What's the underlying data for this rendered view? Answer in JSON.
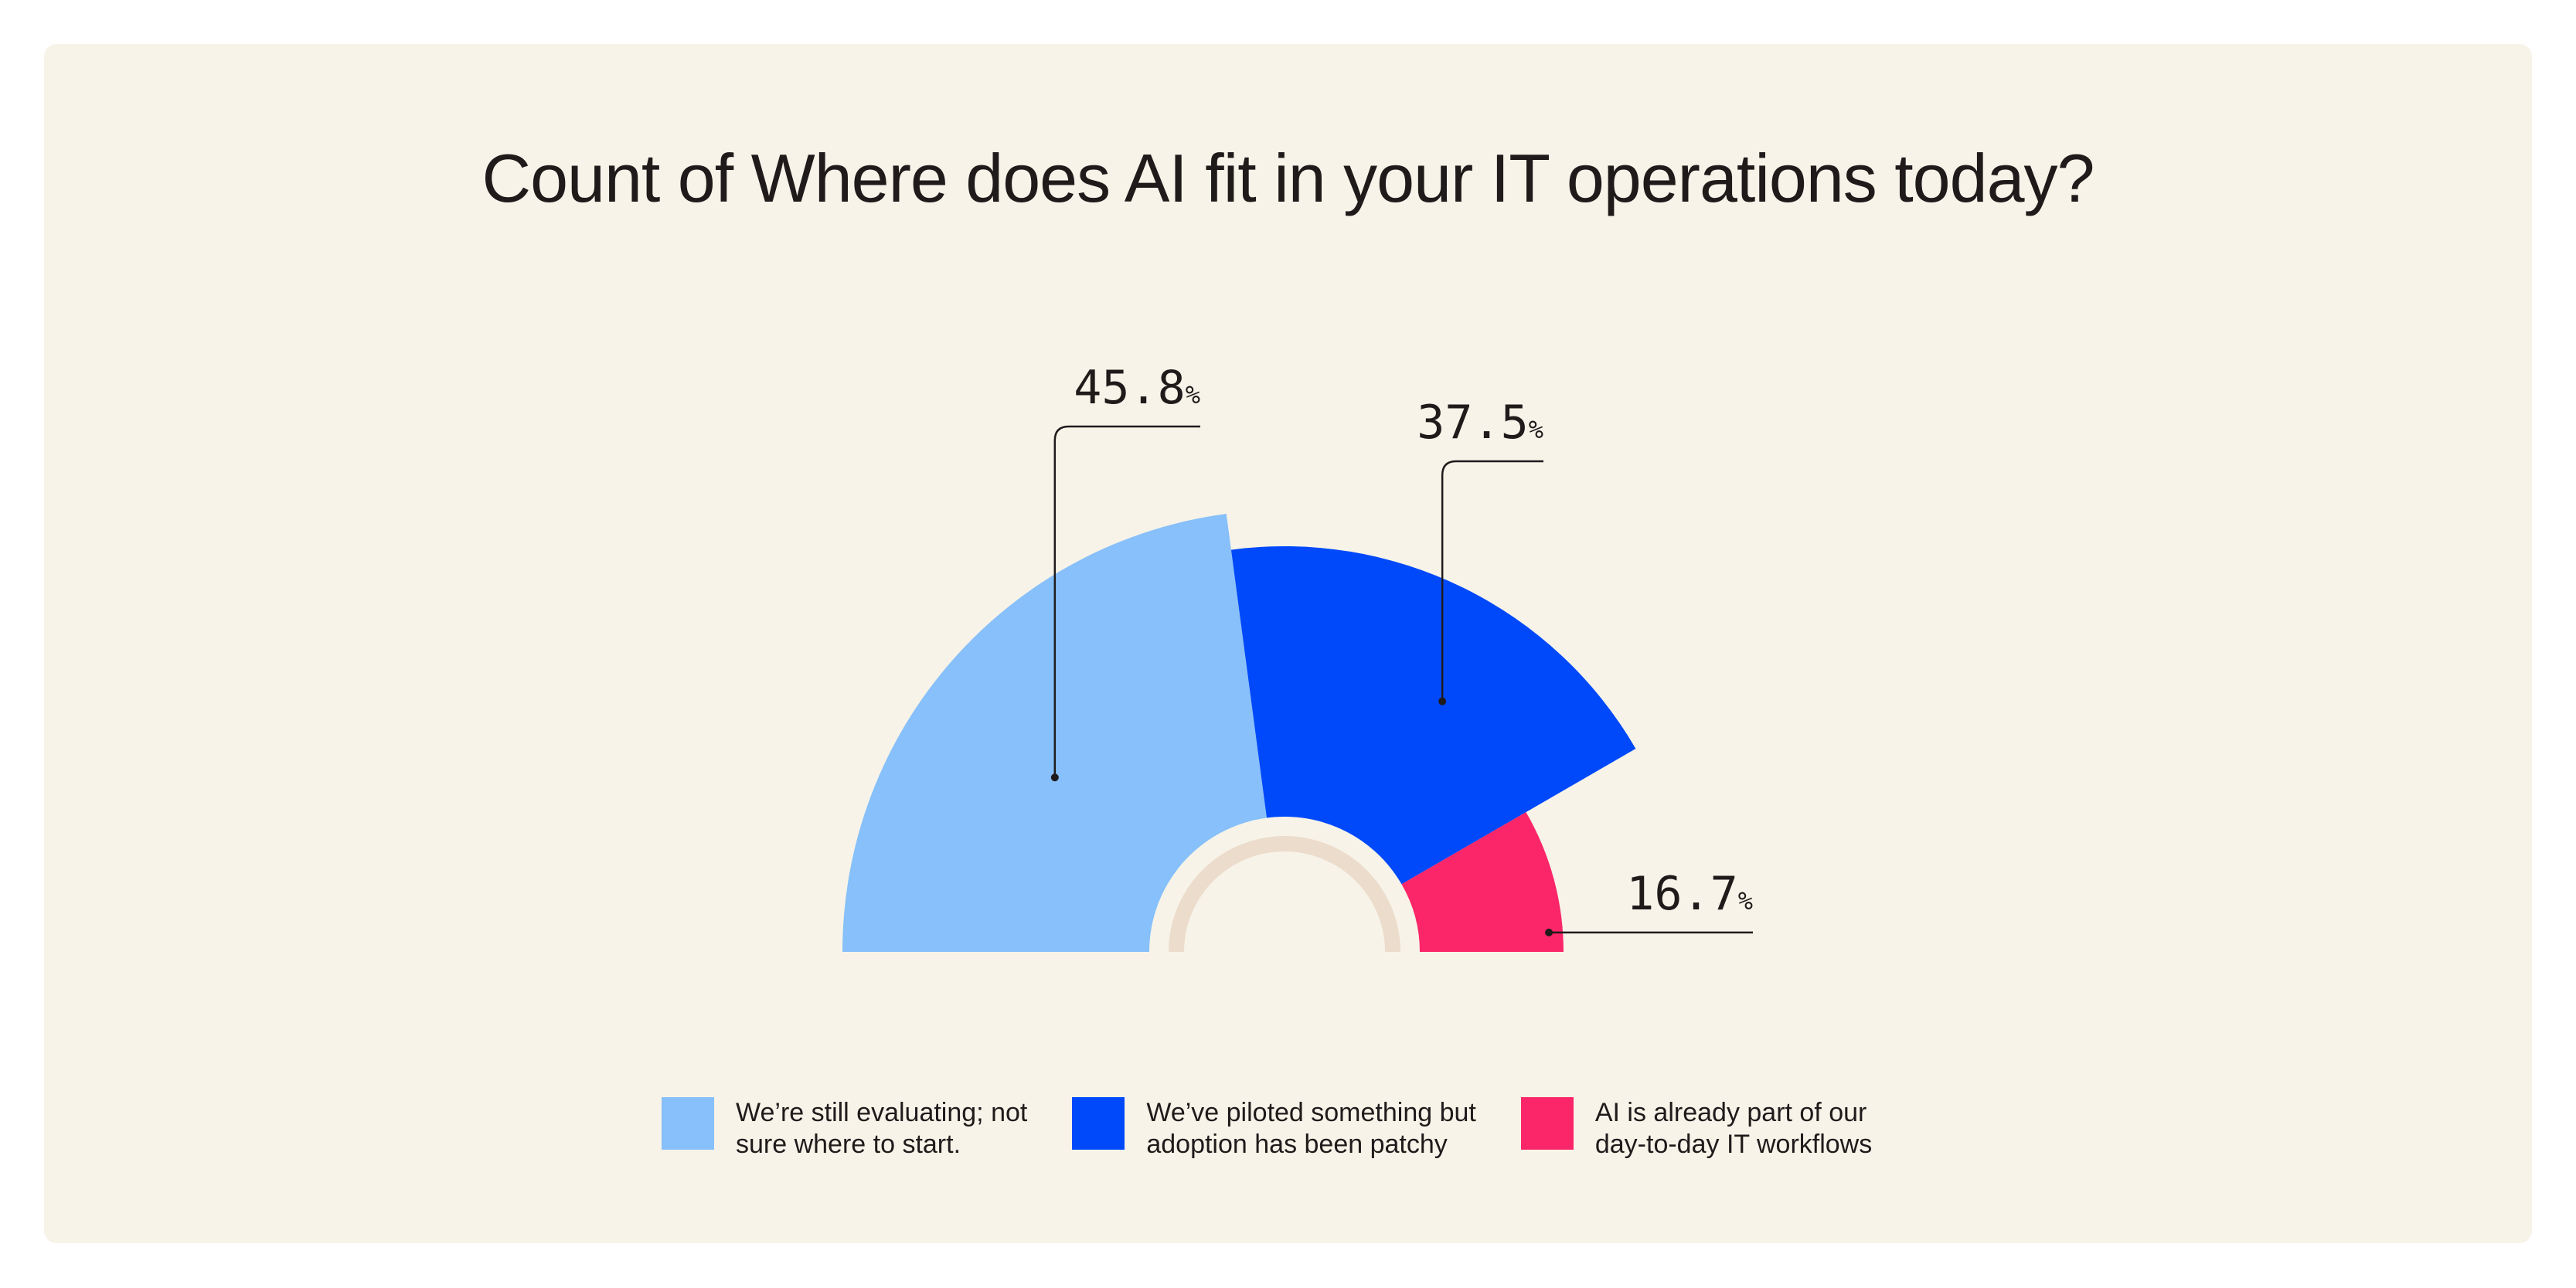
{
  "chart_data": {
    "type": "pie",
    "title": "Count of Where does AI fit in your IT operations today?",
    "slices": [
      {
        "label": "We’re still evaluating; not sure where to start.",
        "legend_lines": [
          "We’re still evaluating; not",
          "sure where to start."
        ],
        "value": 45.8,
        "value_text": "45.8",
        "color": "#87c0fa"
      },
      {
        "label": "We’ve piloted something but adoption has been patchy",
        "legend_lines": [
          "We’ve piloted something but",
          "adoption has been patchy"
        ],
        "value": 37.5,
        "value_text": "37.5",
        "color": "#0049fa"
      },
      {
        "label": "AI is already part of our day-to-day IT workflows",
        "legend_lines": [
          "AI is already part of our",
          "day-to-day IT workflows"
        ],
        "value": 16.7,
        "value_text": "16.7",
        "color": "#fa2669"
      }
    ],
    "unit": "%",
    "legend_position": "bottom",
    "background": "#f7f3e8",
    "inner_ring_color": "#ecdccc"
  }
}
